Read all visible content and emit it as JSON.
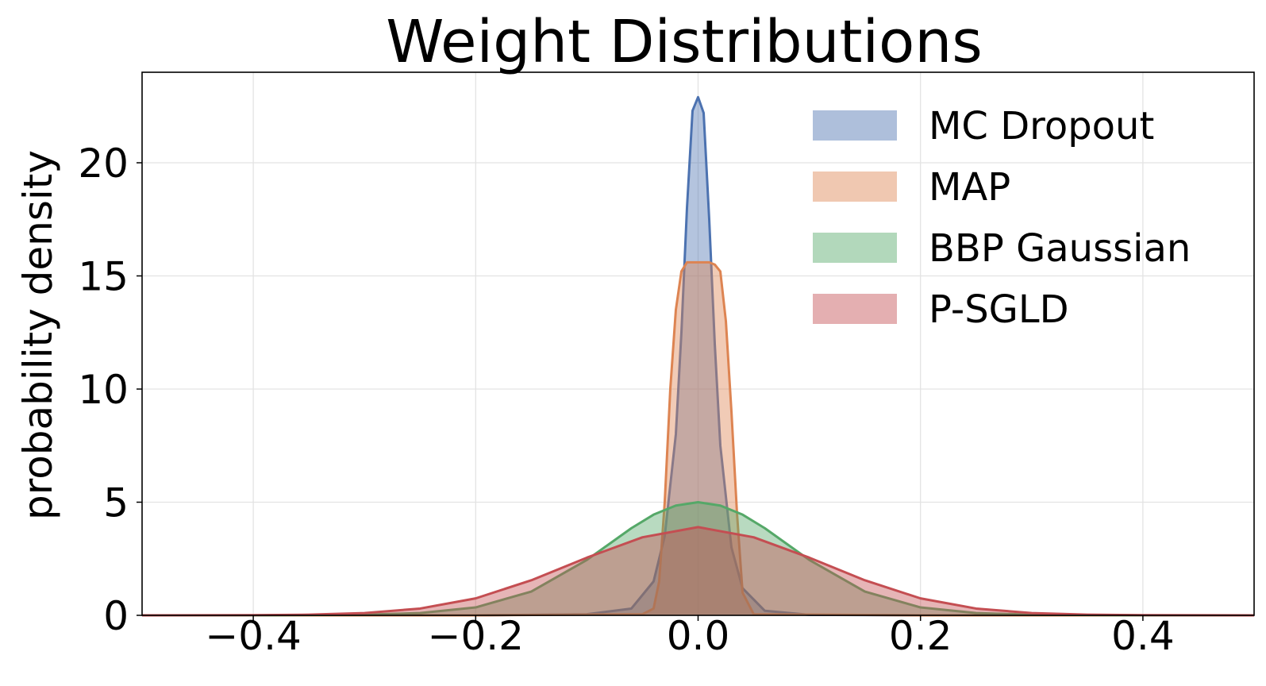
{
  "chart_data": {
    "type": "area",
    "title": "Weight Distributions",
    "xlabel": "",
    "ylabel": "probability density",
    "xlim": [
      -0.5,
      0.5
    ],
    "ylim": [
      0,
      24
    ],
    "xticks": [
      -0.4,
      -0.2,
      0.0,
      0.2,
      0.4
    ],
    "xtick_labels": [
      "−0.4",
      "−0.2",
      "0.0",
      "0.2",
      "0.4"
    ],
    "yticks": [
      0,
      5,
      10,
      15,
      20
    ],
    "ytick_labels": [
      "0",
      "5",
      "10",
      "15",
      "20"
    ],
    "grid": true,
    "legend_position": "top-right",
    "series": [
      {
        "name": "MC Dropout",
        "color": "#4c72b0",
        "x": [
          -0.5,
          -0.2,
          -0.1,
          -0.06,
          -0.04,
          -0.03,
          -0.02,
          -0.015,
          -0.01,
          -0.005,
          0.0,
          0.005,
          0.01,
          0.015,
          0.02,
          0.03,
          0.04,
          0.06,
          0.1,
          0.2,
          0.5
        ],
        "values": [
          0,
          0,
          0.05,
          0.3,
          1.5,
          3.5,
          8.0,
          12.5,
          18.0,
          22.3,
          22.9,
          22.2,
          17.5,
          12.0,
          7.5,
          3.0,
          1.2,
          0.2,
          0.02,
          0,
          0
        ]
      },
      {
        "name": "MAP",
        "color": "#dd8452",
        "x": [
          -0.5,
          -0.2,
          -0.05,
          -0.04,
          -0.035,
          -0.03,
          -0.025,
          -0.02,
          -0.015,
          -0.01,
          -0.005,
          0.0,
          0.005,
          0.01,
          0.015,
          0.02,
          0.025,
          0.03,
          0.035,
          0.04,
          0.05,
          0.2,
          0.5
        ],
        "values": [
          0,
          0,
          0.05,
          0.3,
          1.5,
          5.0,
          10.0,
          13.5,
          15.2,
          15.6,
          15.6,
          15.6,
          15.6,
          15.6,
          15.5,
          15.2,
          13.0,
          9.0,
          4.5,
          1.0,
          0.05,
          0,
          0
        ]
      },
      {
        "name": "BBP Gaussian",
        "color": "#55a868",
        "x": [
          -0.5,
          -0.4,
          -0.3,
          -0.25,
          -0.2,
          -0.15,
          -0.1,
          -0.08,
          -0.06,
          -0.04,
          -0.02,
          0.0,
          0.02,
          0.04,
          0.06,
          0.08,
          0.1,
          0.15,
          0.2,
          0.25,
          0.3,
          0.4,
          0.5
        ],
        "values": [
          0,
          0,
          0.03,
          0.1,
          0.35,
          1.05,
          2.45,
          3.15,
          3.85,
          4.45,
          4.85,
          5.0,
          4.85,
          4.45,
          3.85,
          3.15,
          2.45,
          1.05,
          0.35,
          0.1,
          0.03,
          0,
          0
        ]
      },
      {
        "name": "P-SGLD",
        "color": "#c44e52",
        "x": [
          -0.5,
          -0.4,
          -0.35,
          -0.3,
          -0.25,
          -0.2,
          -0.15,
          -0.1,
          -0.05,
          0.0,
          0.05,
          0.1,
          0.15,
          0.2,
          0.25,
          0.3,
          0.35,
          0.4,
          0.5
        ],
        "values": [
          0,
          0.01,
          0.03,
          0.1,
          0.3,
          0.75,
          1.55,
          2.55,
          3.45,
          3.9,
          3.45,
          2.55,
          1.55,
          0.75,
          0.3,
          0.1,
          0.03,
          0.01,
          0
        ]
      }
    ]
  }
}
